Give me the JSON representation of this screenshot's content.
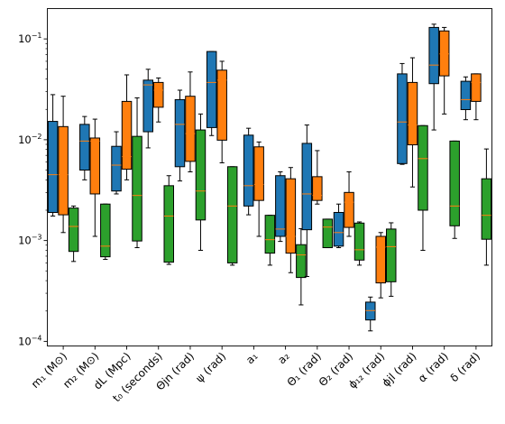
{
  "chart_data": {
    "type": "box",
    "y_scale": "log",
    "ylim": [
      9e-05,
      0.2
    ],
    "y_ticks": [
      {
        "value": 0.0001,
        "base": "10",
        "exp": "−4"
      },
      {
        "value": 0.001,
        "base": "10",
        "exp": "−3"
      },
      {
        "value": 0.01,
        "base": "10",
        "exp": "−2"
      },
      {
        "value": 0.1,
        "base": "10",
        "exp": "−1"
      }
    ],
    "grid": false,
    "legend": "none",
    "series_colors": [
      "#1f77b4",
      "#ff7f0e",
      "#2ca02c"
    ],
    "median_color": "#ff7f0e",
    "categories": [
      {
        "label": "m₁ (M⊙)",
        "boxes": [
          {
            "series": 0,
            "whislo": 0.00175,
            "q1": 0.0019,
            "med": 0.0045,
            "q3": 0.0152,
            "whishi": 0.028
          },
          {
            "series": 1,
            "whislo": 0.0012,
            "q1": 0.0018,
            "med": 0.0045,
            "q3": 0.0135,
            "whishi": 0.027
          },
          {
            "series": 2,
            "whislo": 0.00062,
            "q1": 0.00078,
            "med": 0.00138,
            "q3": 0.0021,
            "whishi": 0.0022
          }
        ]
      },
      {
        "label": "m₂ (M⊙)",
        "boxes": [
          {
            "series": 0,
            "whislo": 0.004,
            "q1": 0.005,
            "med": 0.0097,
            "q3": 0.0142,
            "whishi": 0.017
          },
          {
            "series": 1,
            "whislo": 0.0011,
            "q1": 0.0029,
            "med": 0.0097,
            "q3": 0.0104,
            "whishi": 0.016
          },
          {
            "series": 2,
            "whislo": 0.00065,
            "q1": 0.00069,
            "med": 0.00088,
            "q3": 0.0023,
            "whishi": 0.0023
          }
        ]
      },
      {
        "label": "dL (Mpc)",
        "boxes": [
          {
            "series": 0,
            "whislo": 0.0029,
            "q1": 0.0031,
            "med": 0.0056,
            "q3": 0.0086,
            "whishi": 0.012
          },
          {
            "series": 1,
            "whislo": 0.004,
            "q1": 0.0051,
            "med": 0.0068,
            "q3": 0.024,
            "whishi": 0.044
          },
          {
            "series": 2,
            "whislo": 0.00085,
            "q1": 0.00099,
            "med": 0.0028,
            "q3": 0.0108,
            "whishi": 0.026
          }
        ]
      },
      {
        "label": "t₀ (seconds)",
        "boxes": [
          {
            "series": 0,
            "whislo": 0.0083,
            "q1": 0.012,
            "med": 0.035,
            "q3": 0.039,
            "whishi": 0.05
          },
          {
            "series": 1,
            "whislo": 0.015,
            "q1": 0.021,
            "med": 0.031,
            "q3": 0.037,
            "whishi": 0.041
          },
          {
            "series": 2,
            "whislo": 0.00058,
            "q1": 0.00061,
            "med": 0.00175,
            "q3": 0.0035,
            "whishi": 0.0044
          }
        ]
      },
      {
        "label": "Θjn (rad)",
        "boxes": [
          {
            "series": 0,
            "whislo": 0.0039,
            "q1": 0.0054,
            "med": 0.0142,
            "q3": 0.025,
            "whishi": 0.031
          },
          {
            "series": 1,
            "whislo": 0.0048,
            "q1": 0.0061,
            "med": 0.0115,
            "q3": 0.027,
            "whishi": 0.047
          },
          {
            "series": 2,
            "whislo": 0.0008,
            "q1": 0.0016,
            "med": 0.0031,
            "q3": 0.0125,
            "whishi": 0.018
          }
        ]
      },
      {
        "label": "ψ (rad)",
        "boxes": [
          {
            "series": 0,
            "whislo": 0.011,
            "q1": 0.0132,
            "med": 0.037,
            "q3": 0.075,
            "whishi": 0.075
          },
          {
            "series": 1,
            "whislo": 0.0059,
            "q1": 0.0099,
            "med": 0.039,
            "q3": 0.049,
            "whishi": 0.06
          },
          {
            "series": 2,
            "whislo": 0.00057,
            "q1": 0.0006,
            "med": 0.0022,
            "q3": 0.0054,
            "whishi": 0.0054
          }
        ]
      },
      {
        "label": "a₁",
        "boxes": [
          {
            "series": 0,
            "whislo": 0.0018,
            "q1": 0.0022,
            "med": 0.0035,
            "q3": 0.0111,
            "whishi": 0.013
          },
          {
            "series": 1,
            "whislo": 0.0011,
            "q1": 0.0025,
            "med": 0.0036,
            "q3": 0.0085,
            "whishi": 0.0095
          }
        ]
      },
      {
        "label": "a₂",
        "boxes": [
          {
            "series": 2,
            "whislo": 0.00057,
            "q1": 0.00075,
            "med": 0.00102,
            "q3": 0.00178,
            "whishi": 0.00178
          },
          {
            "series": 0,
            "whislo": 0.00098,
            "q1": 0.0011,
            "med": 0.0013,
            "q3": 0.0044,
            "whishi": 0.0048
          },
          {
            "series": 1,
            "whislo": 0.00048,
            "q1": 0.00075,
            "med": 0.0011,
            "q3": 0.0041,
            "whishi": 0.0053
          },
          {
            "series": 2,
            "whislo": 0.00023,
            "q1": 0.00043,
            "med": 0.00072,
            "q3": 0.00091,
            "whishi": 0.00131
          }
        ]
      },
      {
        "label": "Θ₁ (rad)",
        "boxes": [
          {
            "series": 0,
            "whislo": 0.00044,
            "q1": 0.00128,
            "med": 0.0029,
            "q3": 0.0092,
            "whishi": 0.014
          },
          {
            "series": 1,
            "whislo": 0.0023,
            "q1": 0.0025,
            "med": 0.0028,
            "q3": 0.0043,
            "whishi": 0.0078
          },
          {
            "series": 2,
            "whislo": 0.00085,
            "q1": 0.00085,
            "med": 0.00136,
            "q3": 0.00163,
            "whishi": 0.00163
          }
        ]
      },
      {
        "label": "Θ₂ (rad)",
        "boxes": [
          {
            "series": 0,
            "whislo": 0.00085,
            "q1": 0.00088,
            "med": 0.0012,
            "q3": 0.0019,
            "whishi": 0.0023
          },
          {
            "series": 1,
            "whislo": 0.0011,
            "q1": 0.00135,
            "med": 0.0024,
            "q3": 0.003,
            "whishi": 0.0048
          },
          {
            "series": 2,
            "whislo": 0.00057,
            "q1": 0.00064,
            "med": 0.00081,
            "q3": 0.00149,
            "whishi": 0.00153
          }
        ]
      },
      {
        "label": "ϕ₁₂ (rad)",
        "boxes": [
          {
            "series": 0,
            "whislo": 0.000127,
            "q1": 0.000163,
            "med": 0.000202,
            "q3": 0.000245,
            "whishi": 0.000275
          },
          {
            "series": 1,
            "whislo": 0.00027,
            "q1": 0.00038,
            "med": 0.00086,
            "q3": 0.0011,
            "whishi": 0.0012
          },
          {
            "series": 2,
            "whislo": 0.00028,
            "q1": 0.00039,
            "med": 0.00087,
            "q3": 0.0013,
            "whishi": 0.0015
          }
        ]
      },
      {
        "label": "ϕjl (rad)",
        "boxes": [
          {
            "series": 0,
            "whislo": 0.0057,
            "q1": 0.0058,
            "med": 0.015,
            "q3": 0.045,
            "whishi": 0.057
          },
          {
            "series": 1,
            "whislo": 0.0034,
            "q1": 0.0089,
            "med": 0.014,
            "q3": 0.037,
            "whishi": 0.065
          },
          {
            "series": 2,
            "whislo": 0.0008,
            "q1": 0.002,
            "med": 0.0065,
            "q3": 0.0138,
            "whishi": 0.0138
          }
        ]
      },
      {
        "label": "α (rad)",
        "boxes": [
          {
            "series": 0,
            "whislo": 0.0125,
            "q1": 0.036,
            "med": 0.055,
            "q3": 0.13,
            "whishi": 0.14
          },
          {
            "series": 1,
            "whislo": 0.018,
            "q1": 0.043,
            "med": 0.071,
            "q3": 0.12,
            "whishi": 0.13
          },
          {
            "series": 2,
            "whislo": 0.00105,
            "q1": 0.0014,
            "med": 0.0022,
            "q3": 0.0097,
            "whishi": 0.0097
          }
        ]
      },
      {
        "label": "δ (rad)",
        "boxes": [
          {
            "series": 0,
            "whislo": 0.0158,
            "q1": 0.0199,
            "med": 0.025,
            "q3": 0.038,
            "whishi": 0.042
          },
          {
            "series": 1,
            "whislo": 0.0158,
            "q1": 0.024,
            "med": 0.037,
            "q3": 0.045,
            "whishi": 0.045
          },
          {
            "series": 2,
            "whislo": 0.00057,
            "q1": 0.00103,
            "med": 0.00178,
            "q3": 0.0041,
            "whishi": 0.0081
          }
        ]
      }
    ]
  }
}
